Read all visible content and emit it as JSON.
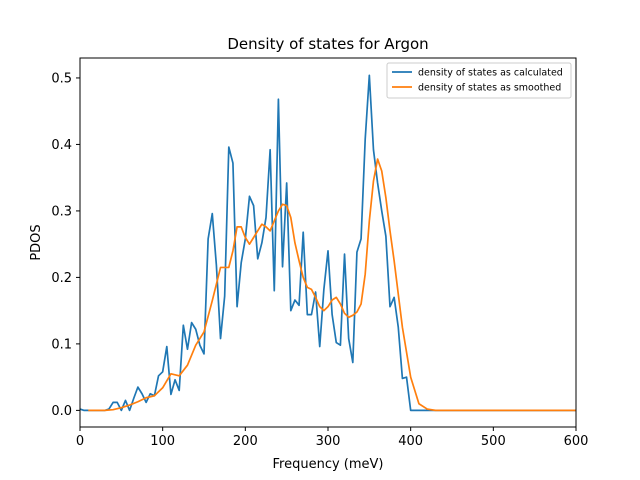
{
  "chart_data": {
    "type": "line",
    "title": "Density of states for Argon",
    "xlabel": "Frequency (meV)",
    "ylabel": "PDOS",
    "xlim": [
      0,
      600
    ],
    "ylim": [
      -0.025,
      0.53
    ],
    "xticks": [
      0,
      100,
      200,
      300,
      400,
      500,
      600
    ],
    "yticks": [
      0.0,
      0.1,
      0.2,
      0.3,
      0.4,
      0.5
    ],
    "ytick_labels": [
      "0.0",
      "0.1",
      "0.2",
      "0.3",
      "0.4",
      "0.5"
    ],
    "grid": false,
    "legend": "top-right",
    "series": [
      {
        "name": "density of states as calculated",
        "color": "#1f77b4",
        "x": [
          0,
          5,
          10,
          15,
          20,
          25,
          30,
          35,
          40,
          45,
          50,
          55,
          60,
          65,
          70,
          75,
          80,
          85,
          90,
          95,
          100,
          105,
          110,
          115,
          120,
          125,
          130,
          135,
          140,
          145,
          150,
          155,
          160,
          165,
          170,
          175,
          180,
          185,
          190,
          195,
          200,
          205,
          210,
          215,
          220,
          225,
          230,
          235,
          240,
          245,
          250,
          255,
          260,
          265,
          270,
          275,
          280,
          285,
          290,
          295,
          300,
          305,
          310,
          315,
          320,
          325,
          330,
          335,
          340,
          345,
          350,
          355,
          360,
          365,
          370,
          375,
          380,
          385,
          390,
          395,
          400,
          405,
          410,
          420,
          430,
          440,
          450,
          460,
          470,
          480,
          490,
          500,
          510,
          520,
          530,
          540,
          550,
          560,
          570,
          580,
          590,
          600
        ],
        "values": [
          0.002,
          0.0,
          0.0,
          0.0,
          0.0,
          0.0,
          0.0,
          0.002,
          0.012,
          0.012,
          0.0,
          0.015,
          0.0,
          0.018,
          0.035,
          0.025,
          0.012,
          0.025,
          0.022,
          0.052,
          0.058,
          0.096,
          0.024,
          0.046,
          0.03,
          0.128,
          0.092,
          0.132,
          0.122,
          0.098,
          0.085,
          0.258,
          0.296,
          0.218,
          0.108,
          0.172,
          0.396,
          0.372,
          0.156,
          0.222,
          0.258,
          0.322,
          0.308,
          0.228,
          0.252,
          0.29,
          0.392,
          0.18,
          0.468,
          0.216,
          0.342,
          0.15,
          0.166,
          0.158,
          0.268,
          0.144,
          0.144,
          0.178,
          0.096,
          0.182,
          0.24,
          0.144,
          0.102,
          0.098,
          0.235,
          0.108,
          0.072,
          0.238,
          0.258,
          0.408,
          0.504,
          0.392,
          0.342,
          0.3,
          0.262,
          0.156,
          0.17,
          0.125,
          0.048,
          0.05,
          0.0,
          0.0,
          0.0,
          0.0,
          0.0,
          0.0,
          0.0,
          0.0,
          0.0,
          0.0,
          0.0,
          0.0,
          0.0,
          0.0,
          0.0,
          0.0,
          0.0,
          0.0,
          0.0,
          0.0,
          0.0,
          0.0
        ]
      },
      {
        "name": "density of states as smoothed",
        "color": "#ff7f0e",
        "x": [
          10,
          20,
          30,
          40,
          50,
          60,
          70,
          80,
          90,
          100,
          110,
          120,
          130,
          140,
          150,
          160,
          170,
          180,
          185,
          190,
          195,
          200,
          205,
          210,
          215,
          220,
          225,
          230,
          235,
          240,
          245,
          250,
          255,
          260,
          265,
          270,
          275,
          280,
          285,
          290,
          295,
          300,
          305,
          310,
          315,
          320,
          325,
          330,
          335,
          340,
          345,
          350,
          355,
          360,
          365,
          370,
          375,
          380,
          390,
          400,
          410,
          420,
          430,
          450,
          500,
          550,
          600
        ],
        "values": [
          0.0,
          0.0,
          0.0,
          0.001,
          0.004,
          0.008,
          0.013,
          0.019,
          0.022,
          0.034,
          0.055,
          0.052,
          0.068,
          0.098,
          0.118,
          0.165,
          0.215,
          0.215,
          0.24,
          0.276,
          0.276,
          0.26,
          0.25,
          0.26,
          0.27,
          0.28,
          0.276,
          0.27,
          0.285,
          0.3,
          0.31,
          0.308,
          0.29,
          0.252,
          0.225,
          0.2,
          0.185,
          0.182,
          0.17,
          0.156,
          0.15,
          0.156,
          0.166,
          0.17,
          0.16,
          0.146,
          0.14,
          0.143,
          0.148,
          0.16,
          0.205,
          0.285,
          0.345,
          0.378,
          0.36,
          0.32,
          0.27,
          0.225,
          0.125,
          0.05,
          0.01,
          0.002,
          0.0,
          0.0,
          0.0,
          0.0,
          0.0
        ]
      }
    ]
  }
}
